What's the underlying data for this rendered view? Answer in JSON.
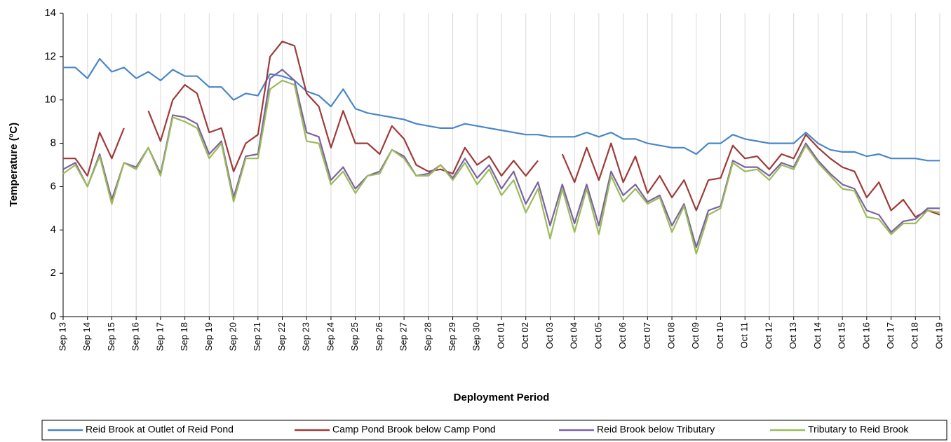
{
  "chart_data": {
    "type": "line",
    "x_label": "Deployment Period",
    "y_label": "Temperature (ºC)",
    "categories": [
      "Sep 13",
      null,
      "Sep 14",
      null,
      "Sep 15",
      null,
      "Sep 16",
      null,
      "Sep 17",
      null,
      "Sep 18",
      null,
      "Sep 19",
      null,
      "Sep 20",
      null,
      "Sep 21",
      null,
      "Sep 22",
      null,
      "Sep 23",
      null,
      "Sep 24",
      null,
      "Sep 25",
      null,
      "Sep 26",
      null,
      "Sep 27",
      null,
      "Sep 28",
      null,
      "Sep 29",
      null,
      "Sep 30",
      null,
      "Oct 01",
      null,
      "Oct 02",
      null,
      "Oct 03",
      null,
      "Oct 04",
      null,
      "Oct 05",
      null,
      "Oct 06",
      null,
      "Oct 07",
      null,
      "Oct 08",
      null,
      "Oct 09",
      null,
      "Oct 10",
      null,
      "Oct 11",
      null,
      "Oct 12",
      null,
      "Oct 13",
      null,
      "Oct 14",
      null,
      "Oct 15",
      null,
      "Oct 16",
      null,
      "Oct 17",
      null,
      "Oct 18",
      null,
      "Oct 19"
    ],
    "series": [
      {
        "name": "Reid Brook at Outlet of Reid Pond",
        "color": "#4a86c8",
        "values": [
          11.5,
          11.5,
          11.0,
          11.9,
          11.3,
          11.5,
          11.0,
          11.3,
          10.9,
          11.4,
          11.1,
          11.1,
          10.6,
          10.6,
          10.0,
          10.3,
          10.2,
          11.2,
          11.1,
          10.9,
          10.4,
          10.2,
          9.7,
          10.5,
          9.6,
          9.4,
          9.3,
          9.2,
          9.1,
          8.9,
          8.8,
          8.7,
          8.7,
          8.9,
          8.8,
          8.7,
          8.6,
          8.5,
          8.4,
          8.4,
          8.3,
          8.3,
          8.3,
          8.5,
          8.3,
          8.5,
          8.2,
          8.2,
          8.0,
          7.9,
          7.8,
          7.8,
          7.5,
          8.0,
          8.0,
          8.4,
          8.2,
          8.1,
          8.0,
          8.0,
          8.0,
          8.5,
          8.0,
          7.7,
          7.6,
          7.6,
          7.4,
          7.5,
          7.3,
          7.3,
          7.3,
          7.2,
          7.2
        ]
      },
      {
        "name": "Camp Pond Brook below Camp Pond",
        "color": "#9e3a38",
        "values": [
          7.3,
          7.3,
          6.5,
          8.5,
          7.3,
          8.7,
          null,
          9.5,
          8.1,
          10.0,
          10.7,
          10.3,
          8.5,
          8.7,
          6.7,
          8.0,
          8.4,
          12.0,
          12.7,
          12.5,
          10.3,
          9.7,
          7.8,
          9.5,
          8.0,
          8.0,
          7.5,
          8.8,
          8.2,
          7.0,
          6.7,
          6.8,
          6.6,
          7.8,
          7.0,
          7.4,
          6.5,
          7.2,
          6.5,
          7.2,
          null,
          7.5,
          6.2,
          7.8,
          6.3,
          8.0,
          6.2,
          7.4,
          5.7,
          6.5,
          5.5,
          6.3,
          4.9,
          6.3,
          6.4,
          7.9,
          7.3,
          7.4,
          6.8,
          7.5,
          7.3,
          8.4,
          7.8,
          7.3,
          6.9,
          6.7,
          5.5,
          6.2,
          4.9,
          5.4,
          4.6,
          4.9,
          4.7
        ]
      },
      {
        "name": "Reid Brook below Tributary",
        "color": "#7b62a3",
        "values": [
          6.8,
          7.1,
          6.0,
          7.5,
          5.4,
          7.1,
          6.9,
          7.8,
          6.6,
          9.3,
          9.2,
          8.9,
          7.5,
          8.1,
          5.5,
          7.4,
          7.5,
          11.0,
          11.4,
          10.9,
          8.5,
          8.3,
          6.3,
          6.9,
          5.9,
          6.5,
          6.7,
          7.7,
          7.4,
          6.5,
          6.6,
          7.0,
          6.4,
          7.3,
          6.4,
          7.0,
          5.9,
          6.7,
          5.2,
          6.2,
          4.2,
          6.1,
          4.3,
          6.1,
          4.2,
          6.7,
          5.6,
          6.1,
          5.3,
          5.6,
          4.2,
          5.2,
          3.2,
          4.9,
          5.1,
          7.2,
          6.9,
          6.9,
          6.5,
          7.1,
          6.9,
          8.0,
          7.2,
          6.6,
          6.1,
          5.9,
          4.9,
          4.7,
          3.9,
          4.4,
          4.5,
          5.0,
          5.0
        ]
      },
      {
        "name": "Tributary to Reid Brook",
        "color": "#9bbb59",
        "values": [
          6.6,
          7.0,
          6.0,
          7.4,
          5.2,
          7.1,
          6.8,
          7.8,
          6.5,
          9.2,
          9.0,
          8.7,
          7.3,
          8.0,
          5.3,
          7.3,
          7.3,
          10.5,
          10.9,
          10.7,
          8.1,
          8.0,
          6.1,
          6.7,
          5.7,
          6.5,
          6.6,
          7.7,
          7.3,
          6.5,
          6.5,
          7.0,
          6.3,
          7.1,
          6.1,
          6.8,
          5.6,
          6.3,
          4.8,
          5.9,
          3.6,
          5.9,
          3.9,
          5.9,
          3.8,
          6.5,
          5.3,
          5.9,
          5.2,
          5.5,
          3.9,
          5.1,
          2.9,
          4.7,
          5.0,
          7.1,
          6.7,
          6.8,
          6.3,
          7.0,
          6.8,
          7.9,
          7.1,
          6.5,
          5.9,
          5.8,
          4.6,
          4.5,
          3.8,
          4.3,
          4.3,
          4.9,
          4.8
        ]
      }
    ],
    "ylim": [
      0,
      14
    ],
    "yticks": [
      0,
      2,
      4,
      6,
      8,
      10,
      12,
      14
    ],
    "xgrid": true,
    "legend": "bottom"
  }
}
